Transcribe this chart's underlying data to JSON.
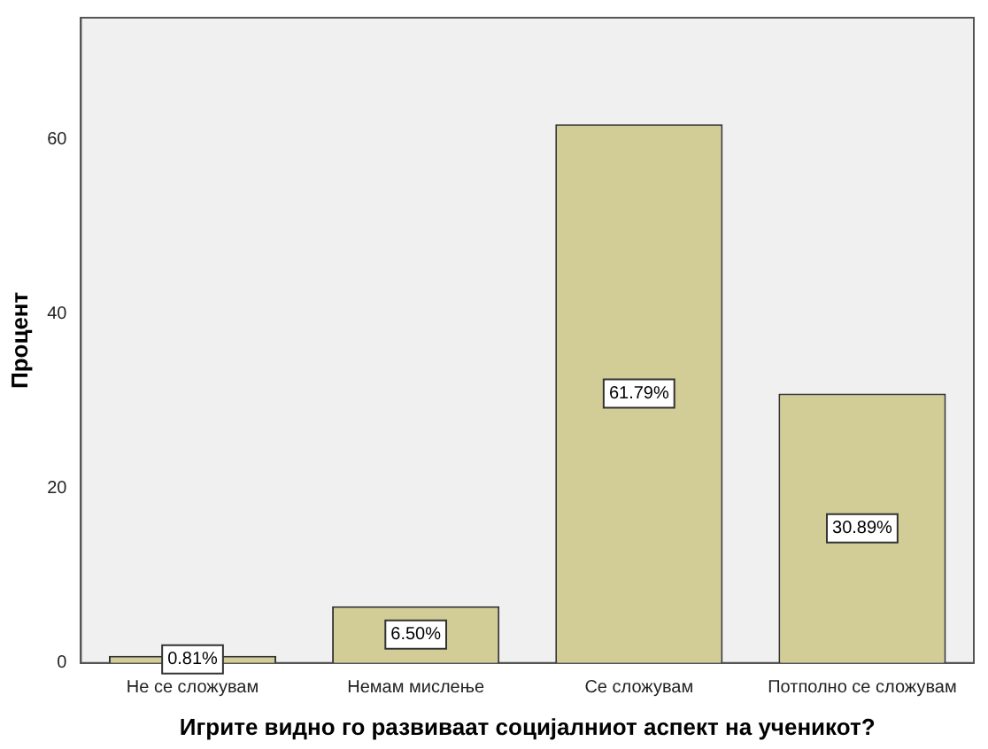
{
  "chart_data": {
    "type": "bar",
    "xlabel": "Игрите видно го развиваат социјалниот аспект на ученикот?",
    "ylabel": "Процент",
    "categories": [
      "Не се сложувам",
      "Немам мислење",
      "Се сложувам",
      "Потполно се сложувам"
    ],
    "values": [
      0.81,
      6.5,
      61.79,
      30.89
    ],
    "value_labels": [
      "0.81%",
      "6.50%",
      "61.79%",
      "30.89%"
    ],
    "color": "#d2cc96",
    "ylim": [
      0,
      74
    ],
    "yticks": [
      0,
      20,
      40,
      60
    ],
    "grid": false,
    "legend": false
  }
}
